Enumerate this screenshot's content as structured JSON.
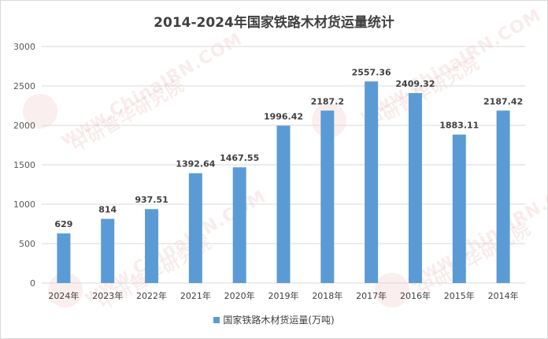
{
  "chart_data": {
    "type": "bar",
    "title": "2014-2024年国家铁路木材货运量统计",
    "categories": [
      "2024年",
      "2023年",
      "2022年",
      "2021年",
      "2020年",
      "2019年",
      "2018年",
      "2017年",
      "2016年",
      "2015年",
      "2014年"
    ],
    "series": [
      {
        "name": "国家铁路木材货运量(万吨)",
        "values": [
          629,
          814,
          937.51,
          1392.64,
          1467.55,
          1996.42,
          2187.2,
          2557.36,
          2409.32,
          1883.11,
          2187.42
        ],
        "labels": [
          "629",
          "814",
          "937.51",
          "1392.64",
          "1467.55",
          "1996.42",
          "2187.2",
          "2557.36",
          "2409.32",
          "1883.11",
          "2187.42"
        ]
      }
    ],
    "ylim": [
      0,
      3000
    ],
    "yticks": [
      0,
      500,
      1000,
      1500,
      2000,
      2500,
      3000
    ],
    "grid": true,
    "legend_position": "bottom",
    "bar_color": "#5b9bd5"
  },
  "watermark": {
    "url": "www.ChinaIRN.COM",
    "name": "中研普华研究院"
  }
}
